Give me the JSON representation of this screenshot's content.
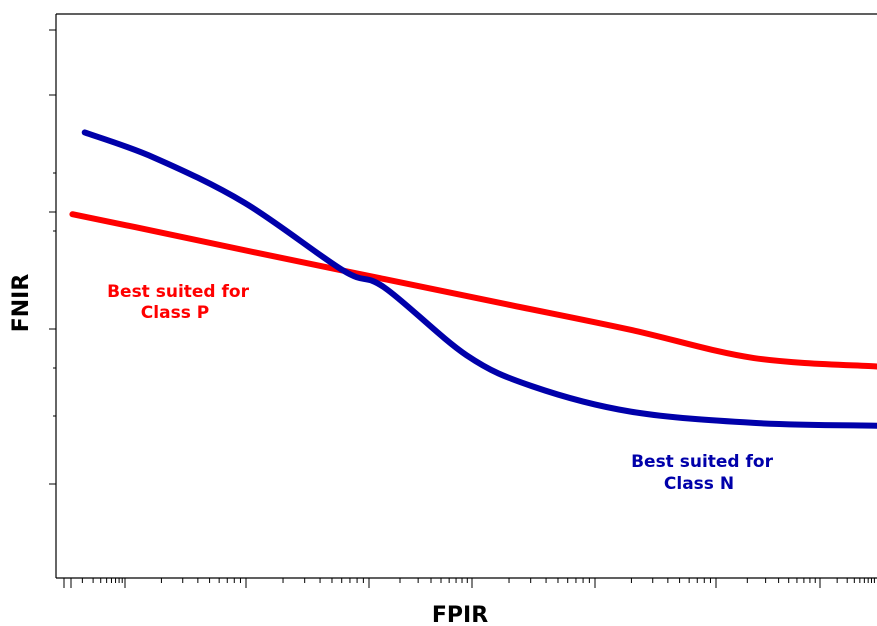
{
  "chart_data": {
    "type": "line",
    "xlabel": "FPIR",
    "ylabel": "FNIR",
    "x_scale": "log",
    "grid": false,
    "tick_labels_shown": false,
    "xlim": [
      0,
      100
    ],
    "ylim": [
      0,
      100
    ],
    "series": [
      {
        "name": "Class P",
        "color": "#ff0000",
        "x": [
          2,
          12,
          25,
          40,
          55,
          70,
          85,
          100
        ],
        "y": [
          64.5,
          61.5,
          57.5,
          53.0,
          48.5,
          44.0,
          39.0,
          37.5
        ],
        "annotation": [
          "Best suited for",
          "Class P"
        ]
      },
      {
        "name": "Class N",
        "color": "#0000aa",
        "x": [
          3.5,
          12,
          23,
          35,
          40,
          50,
          58,
          70,
          85,
          100
        ],
        "y": [
          79.0,
          74.5,
          66.5,
          54.5,
          51.5,
          39.5,
          34.0,
          29.5,
          27.5,
          27.0
        ],
        "annotation": [
          "Best suited for",
          "Class N"
        ]
      }
    ]
  }
}
